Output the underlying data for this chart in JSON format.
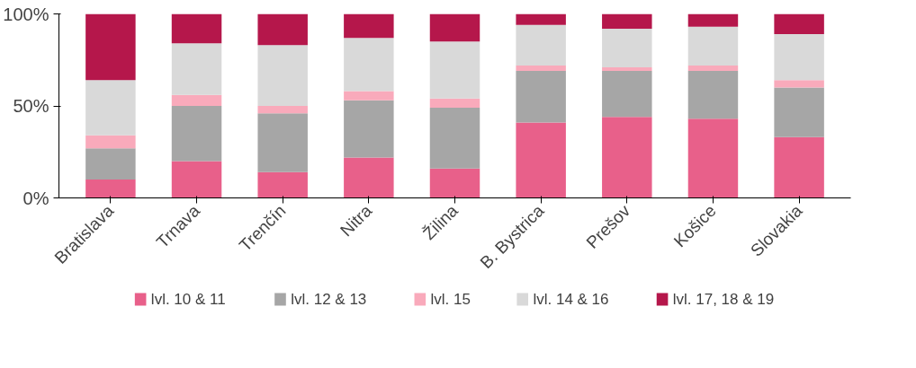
{
  "chart_data": {
    "type": "bar",
    "stacked": true,
    "categories": [
      "Bratislava",
      "Trnava",
      "Trenčín",
      "Nitra",
      "Žilina",
      "B. Bystrica",
      "Prešov",
      "Košice",
      "Slovakia"
    ],
    "series": [
      {
        "name": "lvl. 10 & 11",
        "color": "#e8608a",
        "values": [
          10,
          20,
          14,
          22,
          16,
          41,
          44,
          43,
          33
        ]
      },
      {
        "name": "lvl. 12 & 13",
        "color": "#a6a6a6",
        "values": [
          17,
          30,
          32,
          31,
          33,
          28,
          25,
          26,
          27
        ]
      },
      {
        "name": "lvl. 15",
        "color": "#f9aabb",
        "values": [
          7,
          6,
          4,
          5,
          5,
          3,
          2,
          3,
          4
        ]
      },
      {
        "name": "lvl. 14 & 16",
        "color": "#d9d9d9",
        "values": [
          30,
          28,
          33,
          29,
          31,
          22,
          21,
          21,
          25
        ]
      },
      {
        "name": "lvl. 17, 18 & 19",
        "color": "#b5174b",
        "values": [
          36,
          16,
          17,
          13,
          15,
          6,
          8,
          7,
          11
        ]
      }
    ],
    "ylim": [
      0,
      100
    ],
    "yticks": [
      {
        "value": 0,
        "label": "0%"
      },
      {
        "value": 50,
        "label": "50%"
      },
      {
        "value": 100,
        "label": "100%"
      }
    ],
    "grid": false,
    "legend": "bottom"
  }
}
